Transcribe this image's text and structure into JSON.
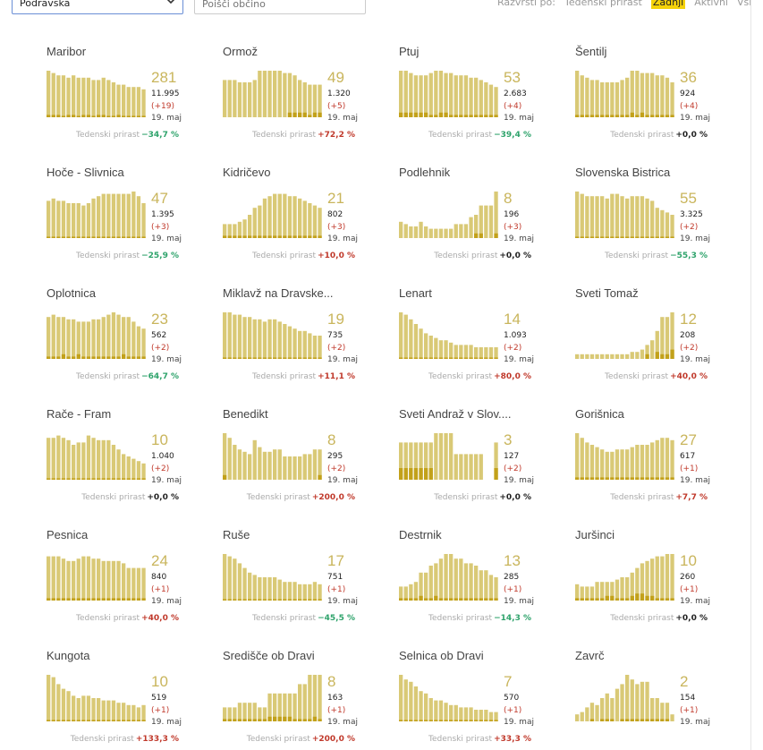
{
  "filter": {
    "region": "Podravska",
    "search_placeholder": "Poišči občino"
  },
  "sort": {
    "label": "Razvrsti po:",
    "options": [
      "Tedenski prirast",
      "Zadnji",
      "Aktivni",
      "Vsi"
    ],
    "active": "Zadnji"
  },
  "colors": {
    "bar": "#d9c976",
    "bar_dark": "#c2a11a",
    "accent": "#f5d20a",
    "neg": "#2ea36b",
    "pos": "#c0392b"
  },
  "growth_label": "Tedenski prirast",
  "cards": [
    {
      "name": "Maribor",
      "big": "281",
      "total": "11.995",
      "delta": "(+19)",
      "date": "19. maj",
      "growth": "−34,7 %",
      "sign": "neg",
      "bars": [
        10,
        9.5,
        9,
        9,
        8.5,
        9,
        8.5,
        8.5,
        8.5,
        8,
        8,
        8.5,
        8,
        7.5,
        7,
        7,
        6.5,
        6.5,
        6.5,
        6
      ],
      "dark": [
        0.5,
        0.5,
        0.5,
        0.3,
        0.5,
        0.5,
        0.3,
        0.5,
        0.5,
        0.3,
        0.5,
        0.5,
        0.3,
        0.3,
        0.5,
        0.3,
        0.3,
        0.3,
        0.3,
        0.3
      ]
    },
    {
      "name": "Ormož",
      "big": "49",
      "total": "1.320",
      "delta": "(+5)",
      "date": "19. maj",
      "growth": "+72,2 %",
      "sign": "pos",
      "bars": [
        8,
        8,
        8,
        7.5,
        7.5,
        7.5,
        8,
        10,
        10,
        10,
        10,
        10,
        9.5,
        9.5,
        9,
        8,
        7.5,
        7,
        7,
        7
      ],
      "dark": [
        0,
        0,
        0,
        0,
        0,
        0,
        0,
        0,
        0,
        0,
        0,
        0,
        0,
        1,
        1,
        1,
        1,
        0.5,
        1,
        1
      ]
    },
    {
      "name": "Ptuj",
      "big": "53",
      "total": "2.683",
      "delta": "(+4)",
      "date": "19. maj",
      "growth": "−39,4 %",
      "sign": "neg",
      "bars": [
        10,
        10,
        9.5,
        9,
        9,
        9,
        9.5,
        10,
        10,
        9.5,
        9.5,
        9,
        9,
        9,
        8.5,
        8.5,
        8,
        7.5,
        7,
        6.5
      ],
      "dark": [
        1,
        1,
        1,
        1,
        1,
        1,
        0.5,
        0.5,
        1,
        1,
        0.5,
        0.5,
        0.5,
        0.5,
        0.5,
        0.5,
        0.5,
        0.5,
        0.5,
        0.5
      ]
    },
    {
      "name": "Šentilj",
      "big": "36",
      "total": "924",
      "delta": "(+4)",
      "date": "19. maj",
      "growth": "+0,0 %",
      "sign": "zero",
      "bars": [
        10,
        9,
        8.5,
        8,
        8,
        7.5,
        7.5,
        7.5,
        7.5,
        8,
        8.5,
        10,
        10,
        9.5,
        9.5,
        9.5,
        9,
        9,
        8.5,
        7.5
      ],
      "dark": [
        0.5,
        0.5,
        0.5,
        0.5,
        0.5,
        0.5,
        0.5,
        0.5,
        0.5,
        0.5,
        0.5,
        1,
        0.5,
        1,
        0.5,
        0.5,
        0.5,
        0.5,
        0.5,
        0.5
      ]
    },
    {
      "name": "Hoče - Slivnica",
      "big": "47",
      "total": "1.395",
      "delta": "(+3)",
      "date": "19. maj",
      "growth": "−25,9 %",
      "sign": "neg",
      "bars": [
        8,
        8.5,
        8,
        8,
        7.5,
        7.5,
        7.5,
        7,
        7.5,
        8.5,
        9,
        9.5,
        9.5,
        9.5,
        9.5,
        9.5,
        9.5,
        10,
        9,
        7.5
      ],
      "dark": [
        0.3,
        0.3,
        0.3,
        0.3,
        0.3,
        0.3,
        0.3,
        0.3,
        0.3,
        0.3,
        0.3,
        0.3,
        0.3,
        0.3,
        0.3,
        0.3,
        0.3,
        0.3,
        0.3,
        0.3
      ]
    },
    {
      "name": "Kidričevo",
      "big": "21",
      "total": "802",
      "delta": "(+3)",
      "date": "19. maj",
      "growth": "+10,0 %",
      "sign": "pos",
      "bars": [
        3,
        3,
        3,
        3.5,
        4,
        5,
        6.5,
        7,
        8.5,
        9,
        9.5,
        9.5,
        9.5,
        9,
        9,
        8.5,
        8,
        7.5,
        7,
        6.5
      ],
      "dark": [
        0.5,
        0.5,
        0.5,
        0.5,
        0.5,
        0.5,
        0.5,
        0.5,
        0.5,
        0.5,
        0.5,
        0.5,
        0.5,
        0.5,
        0.5,
        0.5,
        0.5,
        0.5,
        0.5,
        0.5
      ]
    },
    {
      "name": "Podlehnik",
      "big": "8",
      "total": "196",
      "delta": "(+3)",
      "date": "19. maj",
      "growth": "+0,0 %",
      "sign": "zero",
      "bars": [
        3.5,
        3,
        2.5,
        2.5,
        3.5,
        2.5,
        2,
        2,
        2,
        2,
        2,
        3,
        3,
        3,
        4.5,
        5,
        7,
        7,
        7,
        10
      ],
      "dark": [
        0,
        0,
        0,
        0,
        0,
        0,
        0,
        0,
        0,
        0,
        0,
        0,
        0,
        0,
        0,
        1,
        1,
        0,
        0,
        1
      ]
    },
    {
      "name": "Slovenska Bistrica",
      "big": "55",
      "total": "3.325",
      "delta": "(+2)",
      "date": "19. maj",
      "growth": "−55,3 %",
      "sign": "neg",
      "bars": [
        10,
        9.5,
        9,
        9,
        9,
        9,
        8.5,
        9.5,
        9.5,
        9,
        8.5,
        9,
        9,
        9,
        8.5,
        8,
        6.5,
        6,
        5.5,
        5
      ],
      "dark": [
        0.3,
        0.3,
        0.3,
        0.3,
        0.3,
        0.3,
        0.3,
        0.3,
        0.3,
        0.3,
        0.3,
        0.3,
        0.3,
        0.3,
        0.3,
        0.3,
        0.3,
        0.3,
        0.3,
        0.3
      ]
    },
    {
      "name": "Oplotnica",
      "big": "23",
      "total": "562",
      "delta": "(+2)",
      "date": "19. maj",
      "growth": "−64,7 %",
      "sign": "neg",
      "bars": [
        9,
        9.5,
        9,
        9,
        8.5,
        8.5,
        8,
        8,
        8,
        8.5,
        8.5,
        9,
        9.5,
        10,
        9.5,
        9,
        9,
        8,
        7,
        6.5
      ],
      "dark": [
        0.5,
        0.5,
        0.5,
        1,
        0.5,
        0.5,
        1,
        0.5,
        0.5,
        0.5,
        0.5,
        0.5,
        0.5,
        0.5,
        0.5,
        1,
        0.5,
        0.5,
        0.5,
        0.5
      ]
    },
    {
      "name": "Miklavž na Dravske...",
      "big": "19",
      "total": "735",
      "delta": "(+2)",
      "date": "19. maj",
      "growth": "+11,1 %",
      "sign": "pos",
      "bars": [
        10,
        10,
        9.5,
        9.5,
        9,
        9,
        8.5,
        8.5,
        8,
        8.5,
        8.5,
        8,
        7.5,
        7,
        6.5,
        6,
        6,
        5.5,
        5,
        5
      ],
      "dark": [
        0.3,
        0.3,
        0.3,
        0.3,
        0.3,
        0.3,
        0.3,
        0.3,
        0.3,
        0.3,
        0.3,
        0.3,
        0.3,
        0.3,
        0.3,
        0.3,
        0.3,
        0.3,
        0.3,
        0.3
      ]
    },
    {
      "name": "Lenart",
      "big": "14",
      "total": "1.093",
      "delta": "(+2)",
      "date": "19. maj",
      "growth": "+80,0 %",
      "sign": "pos",
      "bars": [
        10,
        9.5,
        8.5,
        7.5,
        6.5,
        5.5,
        5,
        4.5,
        4,
        4,
        3.5,
        3,
        3,
        3,
        3,
        2.5,
        2.5,
        2.5,
        2.5,
        2.5
      ],
      "dark": [
        0.3,
        0.3,
        0.3,
        0.3,
        0.3,
        0.3,
        0.3,
        0.3,
        0.3,
        0.3,
        0.3,
        0.3,
        0.3,
        0.3,
        0.3,
        0.3,
        0.3,
        0.3,
        0.3,
        0.3
      ]
    },
    {
      "name": "Sveti Tomaž",
      "big": "12",
      "total": "208",
      "delta": "(+2)",
      "date": "19. maj",
      "growth": "+40,0 %",
      "sign": "pos",
      "bars": [
        1,
        1,
        1,
        1,
        1,
        1,
        1,
        1,
        1,
        1,
        1,
        1.5,
        1.5,
        2,
        3,
        4,
        6,
        9,
        9,
        10
      ],
      "dark": [
        0,
        0,
        0,
        0,
        0,
        0,
        0,
        0,
        0,
        0,
        0,
        0,
        0,
        0,
        1,
        0,
        1.5,
        1,
        1,
        2
      ]
    },
    {
      "name": "Rače - Fram",
      "big": "10",
      "total": "1.040",
      "delta": "(+2)",
      "date": "19. maj",
      "growth": "+0,0 %",
      "sign": "zero",
      "bars": [
        9,
        9,
        9.5,
        9,
        8.5,
        7.5,
        8,
        8,
        9.5,
        9,
        8.5,
        8.5,
        8.5,
        7.5,
        6.5,
        5.5,
        5,
        4.5,
        4,
        3.5
      ],
      "dark": [
        0.3,
        0.3,
        0.3,
        0.3,
        0.3,
        0.3,
        0.3,
        0.3,
        0.3,
        0.3,
        0.3,
        0.3,
        0.3,
        0.3,
        0.3,
        0.3,
        0.3,
        0.3,
        0.3,
        0.3
      ]
    },
    {
      "name": "Benedikt",
      "big": "8",
      "total": "295",
      "delta": "(+2)",
      "date": "19. maj",
      "growth": "+200,0 %",
      "sign": "pos",
      "bars": [
        10,
        9,
        7.5,
        6.5,
        6,
        5.5,
        8.5,
        7,
        6,
        6,
        6.5,
        6.5,
        5,
        5,
        5,
        5,
        5.5,
        5.5,
        6.5,
        6.5
      ],
      "dark": [
        1,
        0,
        0,
        0,
        0,
        0,
        0,
        0,
        0,
        0,
        0,
        0,
        0,
        0,
        0,
        0,
        0,
        0,
        0,
        1
      ]
    },
    {
      "name": "Sveti Andraž v Slov....",
      "big": "3",
      "total": "127",
      "delta": "(+2)",
      "date": "19. maj",
      "growth": "+0,0 %",
      "sign": "zero",
      "bars": [
        8,
        8,
        8,
        8,
        8,
        8,
        8,
        10,
        10,
        10,
        10,
        5.5,
        5.5,
        5.5,
        5.5,
        5.5,
        5.5,
        0,
        0,
        8
      ],
      "dark": [
        2.5,
        2.5,
        2.5,
        2.5,
        2.5,
        2.5,
        2.5,
        0,
        0,
        0,
        0,
        0,
        0,
        0,
        0,
        0,
        0,
        0,
        0,
        2.5
      ]
    },
    {
      "name": "Gorišnica",
      "big": "27",
      "total": "617",
      "delta": "(+1)",
      "date": "19. maj",
      "growth": "+7,7 %",
      "sign": "pos",
      "bars": [
        10,
        9,
        8,
        7.5,
        7,
        6.5,
        6,
        6,
        6.5,
        6.5,
        6.5,
        7,
        7.5,
        7.5,
        7.5,
        8,
        8.5,
        9,
        9,
        8.5
      ],
      "dark": [
        0.5,
        0.5,
        0.5,
        0.5,
        0.5,
        0.5,
        0.5,
        0.5,
        0.5,
        0.5,
        0.5,
        0.5,
        0.5,
        0.5,
        0.5,
        0.5,
        0.5,
        0.5,
        0.5,
        0.5
      ]
    },
    {
      "name": "Pesnica",
      "big": "24",
      "total": "840",
      "delta": "(+1)",
      "date": "19. maj",
      "growth": "+40,0 %",
      "sign": "pos",
      "bars": [
        9.5,
        9.5,
        9.5,
        9,
        8.5,
        8.5,
        9,
        9.5,
        9.5,
        9,
        9,
        8.5,
        8.5,
        8.5,
        8.5,
        8,
        7,
        7,
        7,
        7
      ],
      "dark": [
        0.5,
        0.5,
        0.5,
        0.5,
        0.5,
        0.5,
        0.5,
        0.5,
        0.5,
        0.5,
        0.5,
        0.5,
        0.5,
        0.5,
        0.5,
        0.5,
        0.5,
        0.5,
        0.5,
        0.5
      ]
    },
    {
      "name": "Ruše",
      "big": "17",
      "total": "751",
      "delta": "(+1)",
      "date": "19. maj",
      "growth": "−45,5 %",
      "sign": "neg",
      "bars": [
        10,
        9.5,
        9,
        8,
        7,
        6,
        5.5,
        5,
        5,
        5,
        5,
        4.5,
        4,
        4,
        4,
        3.5,
        3.5,
        3.5,
        4,
        3.5
      ],
      "dark": [
        0.3,
        0.3,
        0.3,
        0.3,
        0.3,
        0.3,
        0.3,
        0.3,
        0.3,
        0.3,
        0.3,
        0.3,
        0.3,
        0.3,
        0.3,
        0.3,
        0.3,
        0.3,
        0.3,
        0.3
      ]
    },
    {
      "name": "Destrnik",
      "big": "13",
      "total": "285",
      "delta": "(+1)",
      "date": "19. maj",
      "growth": "−14,3 %",
      "sign": "neg",
      "bars": [
        3,
        3,
        3.5,
        4,
        6,
        6,
        7.5,
        8,
        9,
        10,
        10,
        9,
        9,
        8,
        8,
        7.5,
        6.5,
        6.5,
        5.5,
        5
      ],
      "dark": [
        0.5,
        0.5,
        0.5,
        0.5,
        1,
        0.5,
        0.5,
        1,
        0.5,
        0.5,
        0.5,
        0.5,
        0.5,
        0.5,
        0.5,
        0.5,
        0.5,
        0.5,
        0.5,
        0.5
      ]
    },
    {
      "name": "Juršinci",
      "big": "10",
      "total": "260",
      "delta": "(+1)",
      "date": "19. maj",
      "growth": "+0,0 %",
      "sign": "zero",
      "bars": [
        3.5,
        3,
        3,
        3,
        4,
        4,
        4,
        4,
        4.5,
        5,
        5,
        6,
        7,
        8,
        8.5,
        9,
        9.5,
        9.5,
        10,
        10
      ],
      "dark": [
        0.5,
        0.5,
        0.5,
        0.5,
        0.5,
        0.5,
        1,
        1,
        0.5,
        0.5,
        0.5,
        1,
        1.5,
        1.5,
        1,
        1,
        0.5,
        0.5,
        0.5,
        0.5
      ]
    },
    {
      "name": "Kungota",
      "big": "10",
      "total": "519",
      "delta": "(+1)",
      "date": "19. maj",
      "growth": "+133,3 %",
      "sign": "pos",
      "bars": [
        10,
        9.5,
        8,
        7,
        6.5,
        5.5,
        5,
        5.5,
        5.5,
        5,
        5,
        4.5,
        4.5,
        4.5,
        4,
        4,
        3.5,
        3.5,
        3,
        3.5
      ],
      "dark": [
        0.3,
        0.3,
        0.3,
        0.3,
        0.3,
        0.3,
        0.3,
        0.3,
        0.3,
        0.3,
        0.3,
        0.3,
        0.3,
        0.3,
        0.3,
        0.3,
        0.3,
        0.3,
        0.3,
        0.3
      ]
    },
    {
      "name": "Središče ob Dravi",
      "big": "8",
      "total": "163",
      "delta": "(+1)",
      "date": "19. maj",
      "growth": "+200,0 %",
      "sign": "pos",
      "bars": [
        3,
        3,
        3,
        4,
        4,
        4,
        4,
        3,
        3,
        6,
        6,
        6,
        6,
        6,
        6,
        8,
        8,
        10,
        10,
        10
      ],
      "dark": [
        0.5,
        0.5,
        0.5,
        0.5,
        0.5,
        0.5,
        0.5,
        0.5,
        0.5,
        1,
        1,
        1,
        1,
        1,
        0.5,
        0.5,
        0.5,
        0.5,
        1,
        0.5
      ]
    },
    {
      "name": "Selnica ob Dravi",
      "big": "7",
      "total": "570",
      "delta": "(+1)",
      "date": "19. maj",
      "growth": "+33,3 %",
      "sign": "pos",
      "bars": [
        10,
        9,
        8.5,
        7.5,
        6.5,
        6,
        5,
        4.5,
        4.5,
        4,
        3.5,
        3.5,
        3,
        3,
        3,
        2.5,
        2.5,
        2.5,
        2,
        2
      ],
      "dark": [
        0.3,
        0.3,
        0.3,
        0.3,
        0.3,
        0.3,
        0.3,
        0.3,
        0.3,
        0.3,
        0.3,
        0.3,
        0.3,
        0.3,
        0.3,
        0.3,
        0.3,
        0.3,
        0.3,
        0.3
      ]
    },
    {
      "name": "Zavrč",
      "big": "2",
      "total": "154",
      "delta": "(+1)",
      "date": "19. maj",
      "growth": "",
      "sign": "none",
      "bars": [
        1.5,
        2,
        3,
        4,
        3.5,
        5,
        6,
        5,
        7,
        8,
        10,
        9,
        8,
        8.5,
        8.5,
        5,
        5,
        4,
        4,
        1.5
      ],
      "dark": [
        0,
        0,
        0,
        0.5,
        0,
        0.5,
        0.5,
        0.5,
        0,
        0.5,
        0.5,
        0.5,
        0.5,
        0.5,
        0.5,
        0.5,
        0.5,
        0.5,
        0.5,
        0
      ]
    }
  ]
}
